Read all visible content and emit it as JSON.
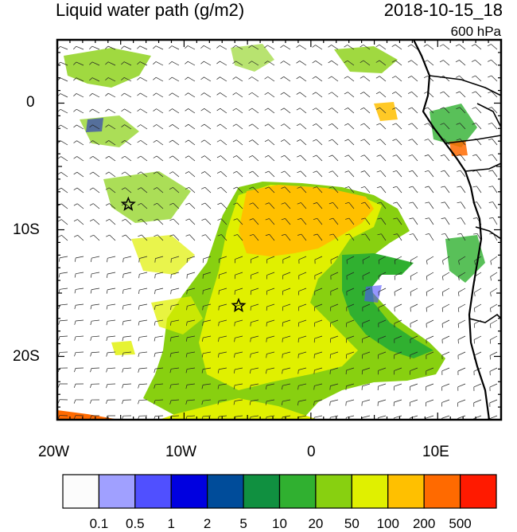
{
  "title_left": "Liquid water path (g/m2)",
  "title_right": "2018-10-15_18",
  "level_label": "600 hPa",
  "lat_labels": [
    "0",
    "10S",
    "20S"
  ],
  "lon_labels": [
    "20W",
    "10W",
    "0",
    "10E"
  ],
  "colorbar": {
    "colors": [
      "#fcfcfc",
      "#a0a0ff",
      "#5050ff",
      "#0000e0",
      "#004c9a",
      "#109040",
      "#30b030",
      "#88d010",
      "#e0f000",
      "#ffc000",
      "#ff6a00",
      "#ff1a00"
    ],
    "labels": [
      "0.1",
      "0.5",
      "1",
      "2",
      "5",
      "10",
      "20",
      "50",
      "100",
      "200",
      "500"
    ]
  },
  "markers": [
    {
      "name": "star-west",
      "lon": -14.4,
      "lat": -8.0
    },
    {
      "name": "star-central",
      "lon": -5.7,
      "lat": -16.0
    }
  ]
}
